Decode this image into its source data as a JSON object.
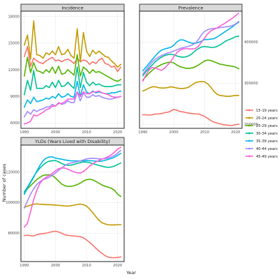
{
  "chart_data": {
    "type": "line",
    "xlabel": "Year",
    "ylabel": "Number of cases",
    "x": [
      1990,
      1991,
      1992,
      1993,
      1994,
      1995,
      1996,
      1997,
      1998,
      1999,
      2000,
      2001,
      2002,
      2003,
      2004,
      2005,
      2006,
      2007,
      2008,
      2009,
      2010,
      2011,
      2012,
      2013,
      2014,
      2015,
      2016,
      2017,
      2018,
      2019,
      2020,
      2021
    ],
    "legend": {
      "position": "right",
      "entries": [
        "15-19 years",
        "20-24 years",
        "25-29 years",
        "30-34 years",
        "35-39 years",
        "40-44 years",
        "45-49 years"
      ],
      "colors": [
        "#F8766D",
        "#C49A00",
        "#53B400",
        "#00C094",
        "#00B6EB",
        "#A58AFF",
        "#FB61D7"
      ]
    },
    "panels": [
      {
        "title": "Incidence",
        "ylim": [
          5400,
          18600
        ],
        "yticks": [
          6000,
          9000,
          12000,
          15000,
          18000
        ],
        "ytick_labels": [
          "6000",
          "9000",
          "12000",
          "15000",
          "18000"
        ],
        "grid": true,
        "series": [
          {
            "name": "15-19 years",
            "values": [
              13500,
              14600,
              12400,
              13300,
              13000,
              12800,
              12700,
              13000,
              13200,
              13400,
              13000,
              13100,
              12900,
              13100,
              13200,
              13000,
              12700,
              13300,
              12900,
              13100,
              13000,
              12600,
              12900,
              12700,
              13100,
              13300,
              12700,
              12600,
              12300,
              12400,
              11800,
              12300
            ]
          },
          {
            "name": "20-24 years",
            "values": [
              14800,
              15900,
              13200,
              17500,
              13700,
              13600,
              13300,
              13900,
              13700,
              14100,
              13700,
              14600,
              13700,
              13800,
              14300,
              13600,
              13300,
              16600,
              12900,
              16200,
              14100,
              13500,
              14200,
              13800,
              14100,
              13800,
              13500,
              13400,
              13000,
              12700,
              12300,
              12600
            ]
          },
          {
            "name": "25-29 years",
            "values": [
              11300,
              13400,
              11700,
              12800,
              11900,
              11800,
              11600,
              12000,
              11700,
              12300,
              11600,
              12400,
              11500,
              11600,
              12000,
              11700,
              11400,
              13700,
              11300,
              12300,
              12000,
              11600,
              12000,
              11700,
              11800,
              11600,
              11400,
              11200,
              11000,
              10800,
              10700,
              10900
            ]
          },
          {
            "name": "30-34 years",
            "values": [
              9200,
              10800,
              9700,
              11900,
              9900,
              9900,
              9900,
              10200,
              10000,
              10600,
              10000,
              10800,
              10100,
              10200,
              10600,
              10200,
              9900,
              12300,
              10000,
              11700,
              10600,
              10200,
              10600,
              10300,
              10400,
              10200,
              10100,
              10100,
              10100,
              10200,
              10300,
              10300
            ]
          },
          {
            "name": "35-39 years",
            "values": [
              7800,
              8600,
              8200,
              8900,
              8400,
              8500,
              8600,
              8800,
              8700,
              9000,
              8800,
              9300,
              8900,
              9000,
              9300,
              9000,
              8900,
              10700,
              9000,
              10300,
              9500,
              9300,
              9600,
              9400,
              9500,
              9400,
              9300,
              9300,
              9400,
              9400,
              9500,
              9600
            ]
          },
          {
            "name": "40-44 years",
            "values": [
              6700,
              7300,
              7000,
              7500,
              7300,
              7500,
              7600,
              7800,
              7800,
              8100,
              7900,
              8300,
              8100,
              8200,
              8500,
              8300,
              8300,
              9500,
              8500,
              9400,
              8900,
              8900,
              9200,
              9000,
              9100,
              8900,
              8800,
              8700,
              8700,
              8800,
              8900,
              9000
            ]
          },
          {
            "name": "45-49 years",
            "values": [
              5900,
              6000,
              6200,
              6900,
              6800,
              7000,
              7200,
              7500,
              7600,
              7900,
              7900,
              8200,
              8200,
              8400,
              8700,
              8700,
              8700,
              9500,
              9000,
              9500,
              9300,
              9300,
              9500,
              9500,
              9600,
              9400,
              9300,
              9200,
              9000,
              8900,
              8900,
              9000
            ]
          }
        ]
      },
      {
        "title": "Prevalence",
        "ylim": [
          190000,
          475000
        ],
        "yticks": [
          200000,
          300000,
          400000
        ],
        "ytick_labels": [
          "200000",
          "300000",
          "400000"
        ],
        "grid": true,
        "series": [
          {
            "name": "15-19 years",
            "values": [
              223000,
              223000,
              222000,
              223000,
              225000,
              225000,
              226000,
              228000,
              229000,
              232000,
              236000,
              234000,
              231000,
              230000,
              228000,
              227000,
              226000,
              225000,
              225000,
              222000,
              219000,
              214000,
              209000,
              205000,
              203000,
              201000,
              199000,
              198000,
              197000,
              197000,
              199000,
              200000
            ]
          },
          {
            "name": "20-24 years",
            "values": [
              281000,
              284000,
              288000,
              291000,
              291000,
              289000,
              288000,
              288000,
              289000,
              291000,
              290000,
              288000,
              287000,
              287000,
              288000,
              291000,
              296000,
              301000,
              303000,
              304000,
              303000,
              298000,
              290000,
              280000,
              273000,
              270000,
              269000,
              268000,
              268000,
              269000,
              270000,
              270000
            ]
          },
          {
            "name": "25-29 years",
            "values": [
              308000,
              316000,
              324000,
              331000,
              337000,
              341000,
              345000,
              348000,
              350000,
              351000,
              349000,
              344000,
              340000,
              338000,
              336000,
              336000,
              337000,
              340000,
              344000,
              349000,
              354000,
              356000,
              355000,
              352000,
              349000,
              346000,
              345000,
              343000,
              342000,
              341000,
              339000,
              335000
            ]
          },
          {
            "name": "30-34 years",
            "values": [
              318000,
              328000,
              336000,
              344000,
              352000,
              358000,
              363000,
              367000,
              369000,
              370000,
              369000,
              366000,
              364000,
              363000,
              364000,
              367000,
              372000,
              379000,
              384000,
              388000,
              389000,
              388000,
              387000,
              387000,
              389000,
              393000,
              398000,
              403000,
              406000,
              409000,
              413000,
              414000
            ]
          },
          {
            "name": "35-39 years",
            "values": [
              330000,
              339000,
              348000,
              357000,
              366000,
              374000,
              380000,
              383000,
              385000,
              387000,
              392000,
              400000,
              405000,
              405000,
              402000,
              399000,
              397000,
              397000,
              399000,
              402000,
              406000,
              406000,
              407000,
              408000,
              412000,
              417000,
              422000,
              427000,
              432000,
              437000,
              443000,
              448000
            ]
          },
          {
            "name": "40-44 years",
            "values": [
              322000,
              332000,
              342000,
              351000,
              358000,
              363000,
              367000,
              370000,
              373000,
              375000,
              378000,
              381000,
              384000,
              386000,
              388000,
              390000,
              393000,
              397000,
              406000,
              418000,
              426000,
              430000,
              432000,
              433000,
              434000,
              435000,
              436000,
              437000,
              438000,
              440000,
              444000,
              450000
            ]
          },
          {
            "name": "45-49 years",
            "values": [
              305000,
              320000,
              332000,
              338000,
              337000,
              334000,
              331000,
              336000,
              344000,
              352000,
              364000,
              374000,
              380000,
              383000,
              384000,
              383000,
              383000,
              384000,
              390000,
              400000,
              410000,
              420000,
              427000,
              431000,
              434000,
              439000,
              443000,
              448000,
              453000,
              458000,
              464000,
              470000
            ]
          }
        ]
      },
      {
        "title": "YLDs (Years Lived with Disability)",
        "ylim": [
          61500,
          137500
        ],
        "yticks": [
          80000,
          100000,
          120000
        ],
        "ytick_labels": [
          "80000",
          "100000",
          "120000"
        ],
        "grid": true,
        "series": [
          {
            "name": "15-19 years",
            "values": [
              78500,
              78700,
              78400,
              78200,
              79000,
              79500,
              79800,
              80000,
              80500,
              81000,
              81300,
              80800,
              80000,
              79000,
              78600,
              78400,
              78200,
              78000,
              77700,
              77000,
              75600,
              74000,
              72200,
              70200,
              68400,
              66800,
              65300,
              64400,
              64000,
              64000,
              64200,
              64500
            ]
          },
          {
            "name": "20-24 years",
            "values": [
              97000,
              97600,
              98300,
              98900,
              99100,
              98900,
              98800,
              98600,
              98600,
              98500,
              98400,
              98200,
              98000,
              97800,
              97700,
              97900,
              98300,
              98700,
              99000,
              98600,
              97700,
              95800,
              93400,
              90800,
              88400,
              86800,
              86000,
              85500,
              85400,
              85400,
              85500,
              85600
            ]
          },
          {
            "name": "25-29 years",
            "values": [
              106000,
              109000,
              111000,
              113000,
              115000,
              116500,
              117700,
              118000,
              118100,
              117700,
              116000,
              114000,
              112100,
              111000,
              110500,
              110600,
              111000,
              111700,
              112700,
              114000,
              114900,
              115200,
              114800,
              113800,
              112600,
              111400,
              110600,
              110000,
              109300,
              108000,
              105500,
              104000
            ]
          },
          {
            "name": "30-34 years",
            "values": [
              107000,
              110000,
              113500,
              117000,
              120000,
              122500,
              124500,
              126100,
              127000,
              127300,
              127400,
              126600,
              125500,
              124700,
              124300,
              124400,
              124900,
              125500,
              126100,
              126500,
              126400,
              126000,
              125400,
              124800,
              124200,
              123700,
              123200,
              123000,
              123200,
              123800,
              124800,
              125800
            ]
          },
          {
            "name": "35-39 years",
            "values": [
              105500,
              109500,
              113000,
              116500,
              120500,
              124200,
              127200,
              129000,
              129700,
              129800,
              129000,
              128600,
              128300,
              127800,
              127500,
              127200,
              127200,
              127200,
              127200,
              127200,
              127400,
              127300,
              127200,
              127000,
              126900,
              127100,
              127600,
              128200,
              128800,
              129600,
              130800,
              132000
            ]
          },
          {
            "name": "40-44 years",
            "values": [
              96500,
              101000,
              105500,
              109000,
              111800,
              113600,
              114900,
              115600,
              116500,
              117700,
              119300,
              121000,
              122600,
              124100,
              125200,
              125800,
              126200,
              126700,
              127200,
              127800,
              128500,
              128800,
              128900,
              128700,
              128500,
              128500,
              128700,
              129100,
              129800,
              130700,
              132200,
              134000
            ]
          },
          {
            "name": "45-49 years",
            "values": [
              84000,
              86500,
              94000,
              102000,
              108000,
              112500,
              115000,
              116500,
              117700,
              119000,
              120700,
              122100,
              122600,
              122500,
              121800,
              120800,
              120000,
              119400,
              119300,
              120200,
              121900,
              123800,
              125300,
              126500,
              127500,
              128400,
              129100,
              130000,
              131200,
              132900,
              134900,
              136000
            ]
          }
        ]
      }
    ],
    "xticks": [
      1990,
      2000,
      2010,
      2020
    ],
    "xtick_labels": [
      "1990",
      "2000",
      "2010",
      "2020"
    ]
  }
}
